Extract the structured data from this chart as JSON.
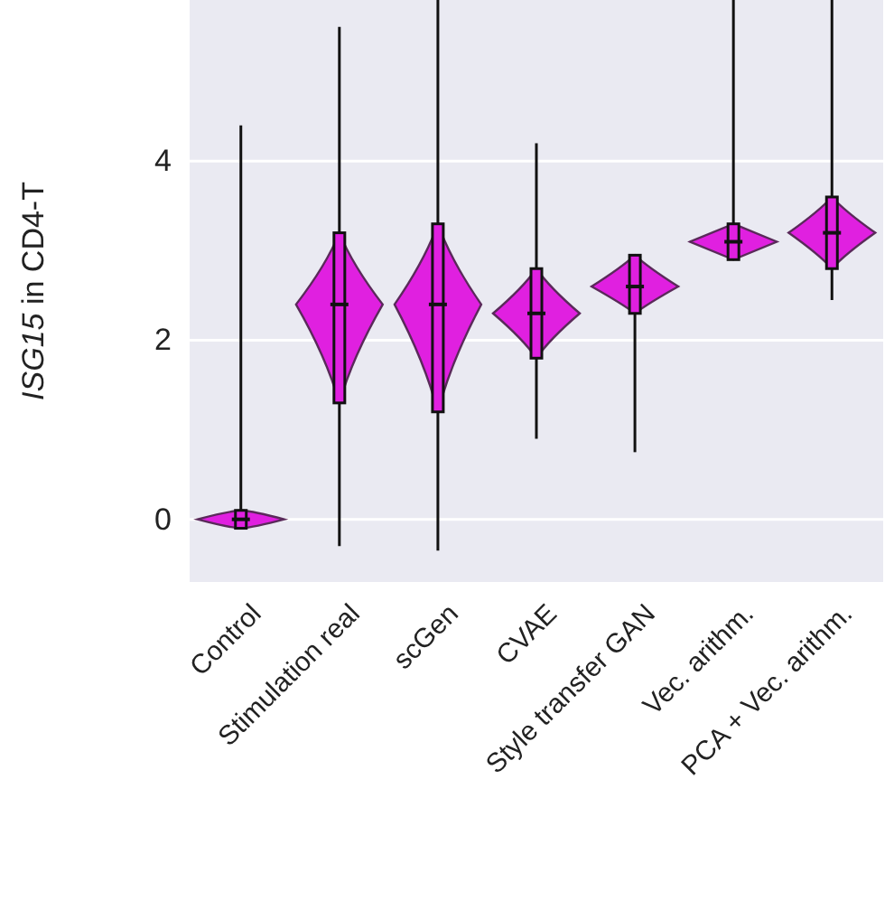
{
  "chart_data": {
    "type": "box",
    "ylabel": "ISG15 in CD4-T",
    "categories": [
      "Control",
      "Stimulation real",
      "scGen",
      "CVAE",
      "Style transfer GAN",
      "Vec. arithm.",
      "PCA + Vec. arithm."
    ],
    "color": "#e020e0",
    "boxes": [
      {
        "low": -0.1,
        "q1": -0.1,
        "median": 0,
        "q3": 0.1,
        "high": 4.4
      },
      {
        "low": -0.3,
        "q1": 1.3,
        "median": 2.4,
        "q3": 3.2,
        "high": 5.5
      },
      {
        "low": -0.35,
        "q1": 1.2,
        "median": 2.4,
        "q3": 3.3,
        "high": 5.8
      },
      {
        "low": 0.9,
        "q1": 1.8,
        "median": 2.3,
        "q3": 2.8,
        "high": 4.2
      },
      {
        "low": 0.75,
        "q1": 2.3,
        "median": 2.6,
        "q3": 2.95,
        "high": 2.95
      },
      {
        "low": 2.9,
        "q1": 2.9,
        "median": 3.1,
        "q3": 3.3,
        "high": 5.8
      },
      {
        "low": 2.45,
        "q1": 2.8,
        "median": 3.2,
        "q3": 3.6,
        "high": 5.8
      }
    ],
    "ylim": [
      -0.7,
      5.8
    ],
    "yticks": [
      0,
      2,
      4
    ],
    "grid": "y"
  }
}
